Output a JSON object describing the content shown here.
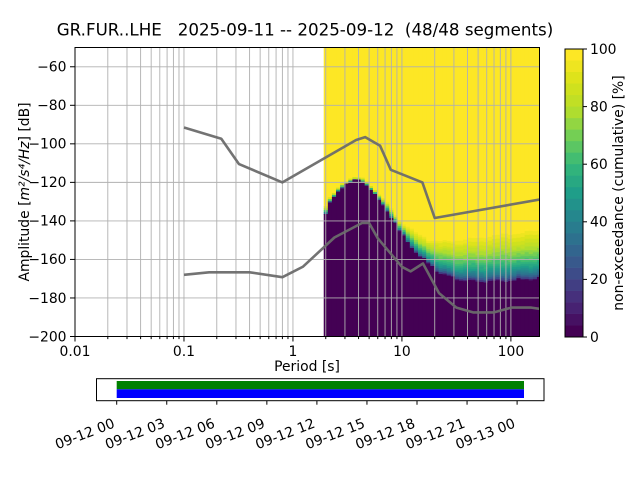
{
  "title": "GR.FUR..LHE   2025-09-11 -- 2025-09-12  (48/48 segments)",
  "chart_data": {
    "type": "heatmap",
    "title": "GR.FUR..LHE   2025-09-11 -- 2025-09-12  (48/48 segments)",
    "station": "GR.FUR..LHE",
    "date_range": "2025-09-11 -- 2025-09-12",
    "segments": "48/48 segments",
    "xlabel": "Period [s]",
    "ylabel_parts": [
      "Amplitude [",
      "m²/s⁴/Hz",
      "] [dB]"
    ],
    "xscale": "log",
    "xlim": [
      0.01,
      183
    ],
    "ylim": [
      -200,
      -50
    ],
    "x_tick_values": [
      0.01,
      0.1,
      1,
      10,
      100
    ],
    "x_tick_labels": [
      "0.01",
      "0.1",
      "1",
      "10",
      "100"
    ],
    "y_tick_values": [
      -60,
      -80,
      -100,
      -120,
      -140,
      -160,
      -180,
      -200
    ],
    "grid": true,
    "colorbar": {
      "label": "non-exceedance (cumulative) [%]",
      "tick_values": [
        0,
        20,
        40,
        60,
        80,
        100
      ],
      "range": [
        0,
        100
      ],
      "levels": 25
    },
    "heatmap": {
      "description": "cumulative PPSD distribution: below 'lo' dB ~0% (dark purple), above 'hi' dB 100% (yellow)",
      "period_start": 1.93,
      "period_end": 183,
      "period_step_octaves": 0.125,
      "bands": [
        {
          "p": 1.97,
          "lo": -138.0,
          "hi": -134.0
        },
        {
          "p": 2.2,
          "lo": -131.0,
          "hi": -128.3
        },
        {
          "p": 2.55,
          "lo": -125.7,
          "hi": -123.3
        },
        {
          "p": 2.9,
          "lo": -121.8,
          "hi": -119.7
        },
        {
          "p": 3.35,
          "lo": -120.0,
          "hi": -118.3
        },
        {
          "p": 3.85,
          "lo": -119.2,
          "hi": -117.6
        },
        {
          "p": 4.4,
          "lo": -119.7,
          "hi": -117.9
        },
        {
          "p": 5.1,
          "lo": -122.8,
          "hi": -120.5
        },
        {
          "p": 5.8,
          "lo": -127.5,
          "hi": -124.5
        },
        {
          "p": 6.7,
          "lo": -131.8,
          "hi": -128.3
        },
        {
          "p": 7.7,
          "lo": -136.1,
          "hi": -131.8
        },
        {
          "p": 8.8,
          "lo": -141.3,
          "hi": -136.6
        },
        {
          "p": 9.6,
          "lo": -145.6,
          "hi": -139.6
        },
        {
          "p": 11.9,
          "lo": -152.5,
          "hi": -143.9
        },
        {
          "p": 14.7,
          "lo": -158.6,
          "hi": -147.4
        },
        {
          "p": 18.2,
          "lo": -162.9,
          "hi": -149.1
        },
        {
          "p": 22.4,
          "lo": -167.2,
          "hi": -149.7
        },
        {
          "p": 27.7,
          "lo": -169.0,
          "hi": -149.5
        },
        {
          "p": 34.0,
          "lo": -170.7,
          "hi": -149.0
        },
        {
          "p": 52.0,
          "lo": -171.6,
          "hi": -147.8
        },
        {
          "p": 85.0,
          "lo": -171.3,
          "hi": -146.0
        },
        {
          "p": 120.0,
          "lo": -170.8,
          "hi": -145.5
        },
        {
          "p": 172.0,
          "lo": -170.2,
          "hi": -144.1
        },
        {
          "p": 183.0,
          "lo": -170.0,
          "hi": -144.0
        }
      ]
    },
    "noise_models": {
      "nhnm": [
        [
          0.1,
          -91.5
        ],
        [
          0.22,
          -97.4
        ],
        [
          0.32,
          -110.5
        ],
        [
          0.8,
          -120.0
        ],
        [
          3.8,
          -98.0
        ],
        [
          4.6,
          -96.5
        ],
        [
          6.3,
          -101.0
        ],
        [
          7.9,
          -113.5
        ],
        [
          15.4,
          -120.0
        ],
        [
          20.0,
          -138.5
        ],
        [
          183.0,
          -128.9
        ]
      ],
      "nlnm": [
        [
          0.1,
          -168.0
        ],
        [
          0.17,
          -166.7
        ],
        [
          0.4,
          -166.7
        ],
        [
          0.8,
          -169.2
        ],
        [
          1.24,
          -163.7
        ],
        [
          2.4,
          -148.6
        ],
        [
          4.3,
          -141.1
        ],
        [
          5.0,
          -141.1
        ],
        [
          6.0,
          -149.0
        ],
        [
          10.0,
          -163.8
        ],
        [
          12.0,
          -166.2
        ],
        [
          15.6,
          -162.1
        ],
        [
          21.9,
          -177.5
        ],
        [
          31.6,
          -185.0
        ],
        [
          45.0,
          -187.5
        ],
        [
          70.0,
          -187.5
        ],
        [
          101.0,
          -185.0
        ],
        [
          154.0,
          -185.0
        ],
        [
          183.0,
          -185.6
        ]
      ]
    },
    "timeline": {
      "tick_labels": [
        "09-12 00",
        "09-12 03",
        "09-12 06",
        "09-12 09",
        "09-12 12",
        "09-12 15",
        "09-12 18",
        "09-12 21",
        "09-13 00"
      ],
      "bars": [
        {
          "name": "ppsd-coverage",
          "color": "#008000"
        },
        {
          "name": "data-availability",
          "color": "#0000ff"
        }
      ]
    }
  },
  "colors": {
    "background": "#ffffff",
    "grid": "#b0b0b0",
    "frame": "#000000",
    "noise_model_line": "#6b6b6b",
    "coverage_green": "#008000",
    "availability_blue": "#0000ff",
    "viridis_stops": [
      "#440154",
      "#482878",
      "#3e4989",
      "#31688e",
      "#26828e",
      "#1f9e89",
      "#35b779",
      "#6ece58",
      "#b5de2b",
      "#d8e219",
      "#fde725"
    ]
  }
}
